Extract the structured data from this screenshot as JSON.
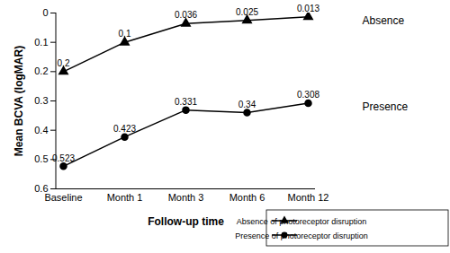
{
  "chart_data": {
    "type": "line",
    "x_label": "Follow-up time",
    "y_label": "Mean BCVA (logMAR)",
    "categories": [
      "Baseline",
      "Month 1",
      "Month 3",
      "Month 6",
      "Month 12"
    ],
    "series": [
      {
        "name": "Absence of photoreceptor disruption",
        "color": "#000000",
        "marker": "triangle",
        "line_style": "solid",
        "values": [
          0.2,
          0.1,
          0.036,
          0.025,
          0.013
        ]
      },
      {
        "name": "Presence of photoreceptor disruption",
        "color": "#000000",
        "marker": "circle",
        "line_style": "solid",
        "values": [
          0.523,
          0.423,
          0.331,
          0.34,
          0.308
        ]
      }
    ],
    "annotations": [
      "Absence",
      "Presence"
    ],
    "ylim": [
      0.6,
      0
    ],
    "yticks": [
      0,
      0.1,
      0.2,
      0.3,
      0.4,
      0.5,
      0.6
    ],
    "data_labels": true,
    "grid": false,
    "legend": "lower right"
  }
}
